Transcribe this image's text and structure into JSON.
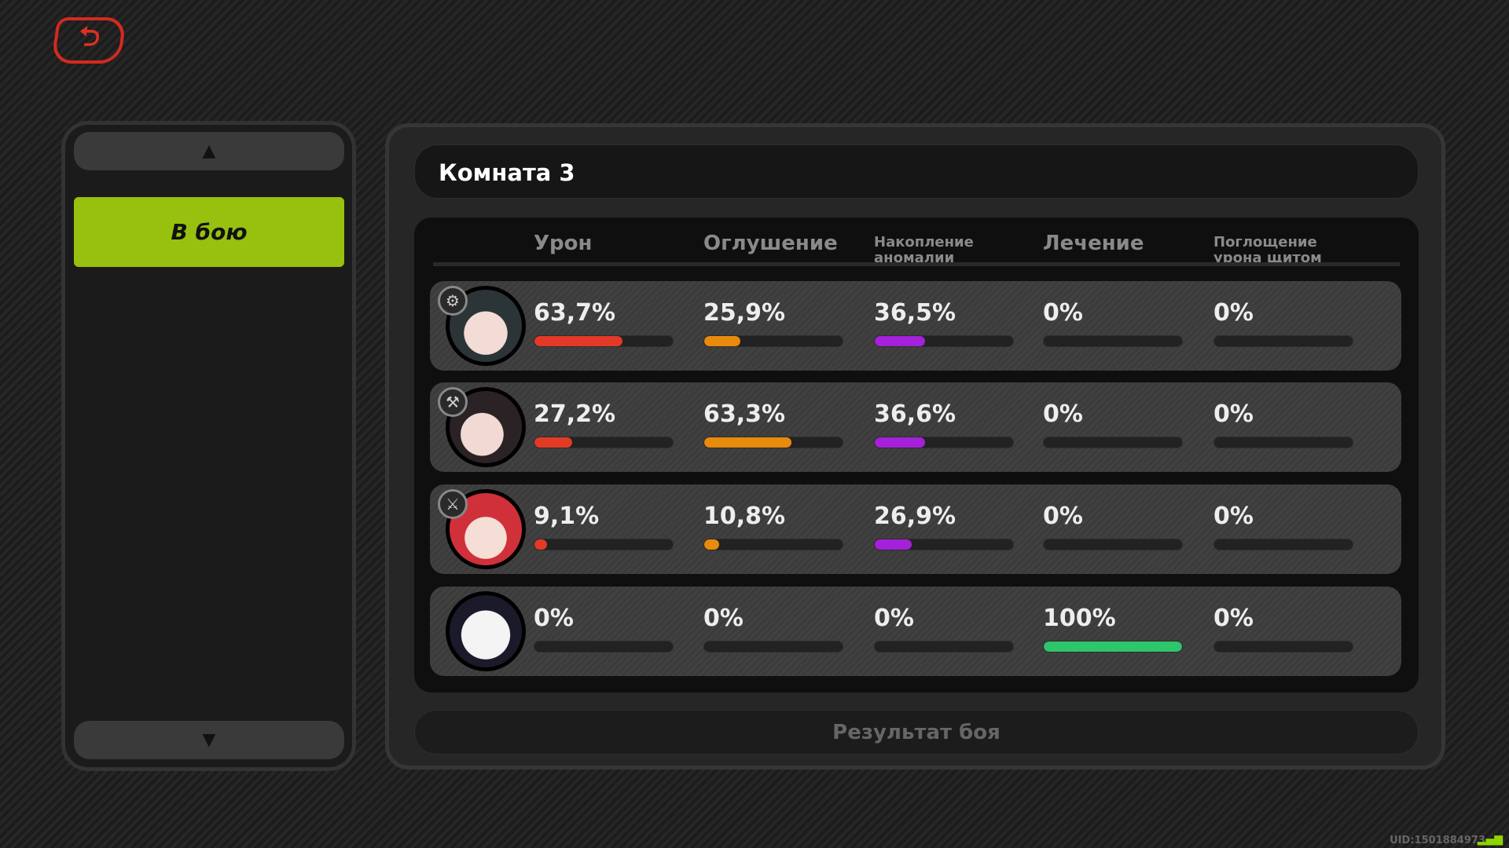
{
  "back_icon": "back-arrow-icon",
  "sidebar": {
    "items": [
      {
        "label": "В бою",
        "selected": true
      }
    ],
    "up_icon": "▲",
    "down_icon": "▼"
  },
  "room": {
    "title": "Комната 3"
  },
  "columns": [
    {
      "label": "Урон",
      "color": "#e23a26"
    },
    {
      "label": "Оглушение",
      "color": "#e88a0c"
    },
    {
      "label": "Накопление аномалии",
      "color": "#a521d9"
    },
    {
      "label": "Лечение",
      "color": "#2fc56a"
    },
    {
      "label": "Поглощение урона щитом",
      "color": "#888888"
    }
  ],
  "rows": [
    {
      "avatar": "agent-dark-hair",
      "badge_icon": "anomaly-icon",
      "values": [
        "63,7%",
        "25,9%",
        "36,5%",
        "0%",
        "0%"
      ],
      "fractions": [
        0.637,
        0.259,
        0.365,
        0,
        0
      ]
    },
    {
      "avatar": "agent-bob-hair",
      "badge_icon": "stun-icon",
      "values": [
        "27,2%",
        "63,3%",
        "36,6%",
        "0%",
        "0%"
      ],
      "fractions": [
        0.272,
        0.633,
        0.366,
        0,
        0
      ]
    },
    {
      "avatar": "agent-red-hair",
      "badge_icon": "attack-icon",
      "values": [
        "9,1%",
        "10,8%",
        "26,9%",
        "0%",
        "0%"
      ],
      "fractions": [
        0.091,
        0.108,
        0.269,
        0,
        0
      ]
    },
    {
      "avatar": "bangboo",
      "badge_icon": "",
      "values": [
        "0%",
        "0%",
        "0%",
        "100%",
        "0%"
      ],
      "fractions": [
        0,
        0,
        0,
        1,
        0
      ]
    }
  ],
  "result_button": "Результат боя",
  "uid": "UID:1501884973"
}
